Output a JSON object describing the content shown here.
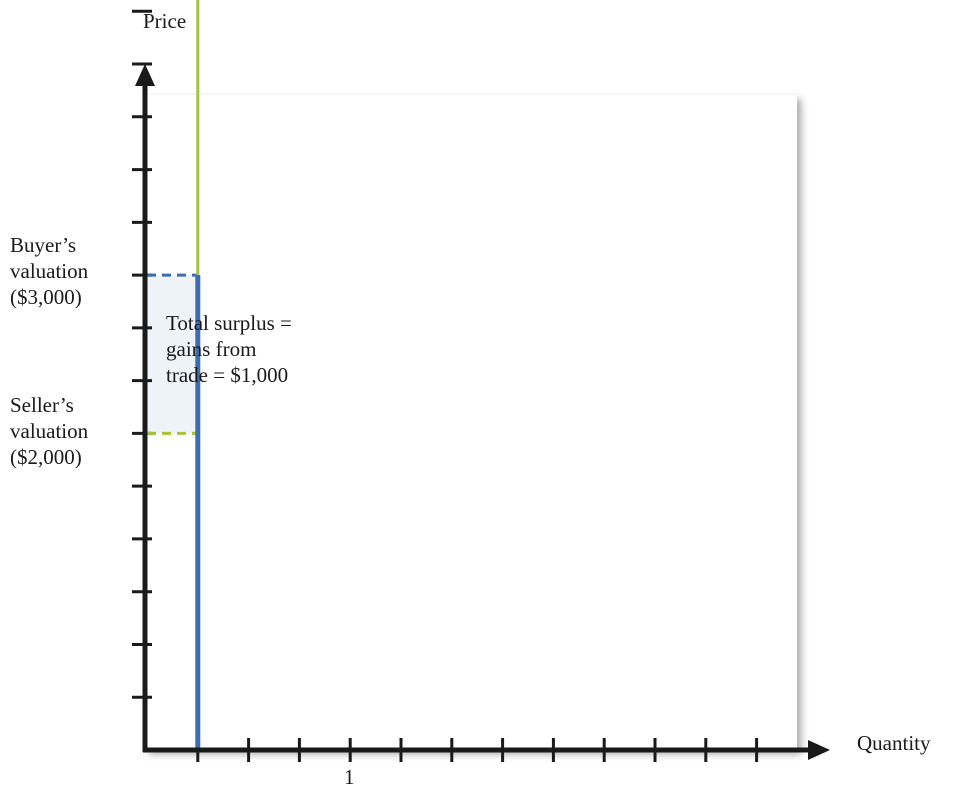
{
  "chart_data": {
    "type": "line",
    "title": "",
    "xlabel": "Quantity",
    "ylabel": "Price",
    "x_tick_labels": [
      "1"
    ],
    "xlim": [
      0,
      12
    ],
    "ylim": [
      0,
      6500
    ],
    "grid": false,
    "buyer_valuation": {
      "label_lines": [
        "Buyer’s",
        "valuation",
        "($3,000)"
      ],
      "value": 3000,
      "color": "#3b6db3"
    },
    "seller_valuation": {
      "label_lines": [
        "Seller’s",
        "valuation",
        "($2,000)"
      ],
      "value": 2000,
      "color": "#a6c236"
    },
    "surplus": {
      "label_lines": [
        "Total surplus =",
        "gains from",
        "trade = $1,000"
      ],
      "value": 1000,
      "fill": "#eef3f7"
    },
    "series": [
      {
        "type": "demand",
        "color": "#3b6db3",
        "points": [
          [
            1,
            0
          ],
          [
            1,
            3000
          ]
        ]
      },
      {
        "type": "supply",
        "color": "#a6c236",
        "points": [
          [
            1,
            2000
          ],
          [
            1,
            6200
          ]
        ]
      }
    ]
  }
}
